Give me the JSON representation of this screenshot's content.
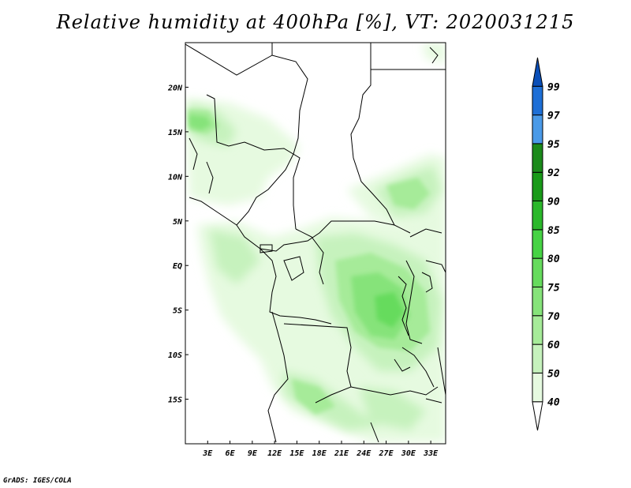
{
  "title": "Relative humidity at 400hPa [%], VT: 2020031215",
  "credit": "GrADS: IGES/COLA",
  "map": {
    "lon_range": [
      0,
      35
    ],
    "lat_range": [
      -20,
      25
    ],
    "lon_ticks": [
      {
        "value": 3,
        "label": "3E"
      },
      {
        "value": 6,
        "label": "6E"
      },
      {
        "value": 9,
        "label": "9E"
      },
      {
        "value": 12,
        "label": "12E"
      },
      {
        "value": 15,
        "label": "15E"
      },
      {
        "value": 18,
        "label": "18E"
      },
      {
        "value": 21,
        "label": "21E"
      },
      {
        "value": 24,
        "label": "24E"
      },
      {
        "value": 27,
        "label": "27E"
      },
      {
        "value": 30,
        "label": "30E"
      },
      {
        "value": 33,
        "label": "33E"
      }
    ],
    "lat_ticks": [
      {
        "value": 20,
        "label": "20N"
      },
      {
        "value": 15,
        "label": "15N"
      },
      {
        "value": 10,
        "label": "10N"
      },
      {
        "value": 5,
        "label": "5N"
      },
      {
        "value": 0,
        "label": "EQ"
      },
      {
        "value": -5,
        "label": "5S"
      },
      {
        "value": -10,
        "label": "10S"
      },
      {
        "value": -15,
        "label": "15S"
      }
    ]
  },
  "colorbar": {
    "levels": [
      "40",
      "50",
      "60",
      "70",
      "75",
      "80",
      "85",
      "90",
      "92",
      "95",
      "97",
      "99"
    ],
    "colors": [
      "#ffffff",
      "#e6fae0",
      "#c6f2bd",
      "#a6eb99",
      "#86e37a",
      "#66db5d",
      "#46d344",
      "#2bb82b",
      "#199a19",
      "#1b8a1b",
      "#4a9ae8",
      "#1e6fd6",
      "#0a4fb8"
    ]
  }
}
